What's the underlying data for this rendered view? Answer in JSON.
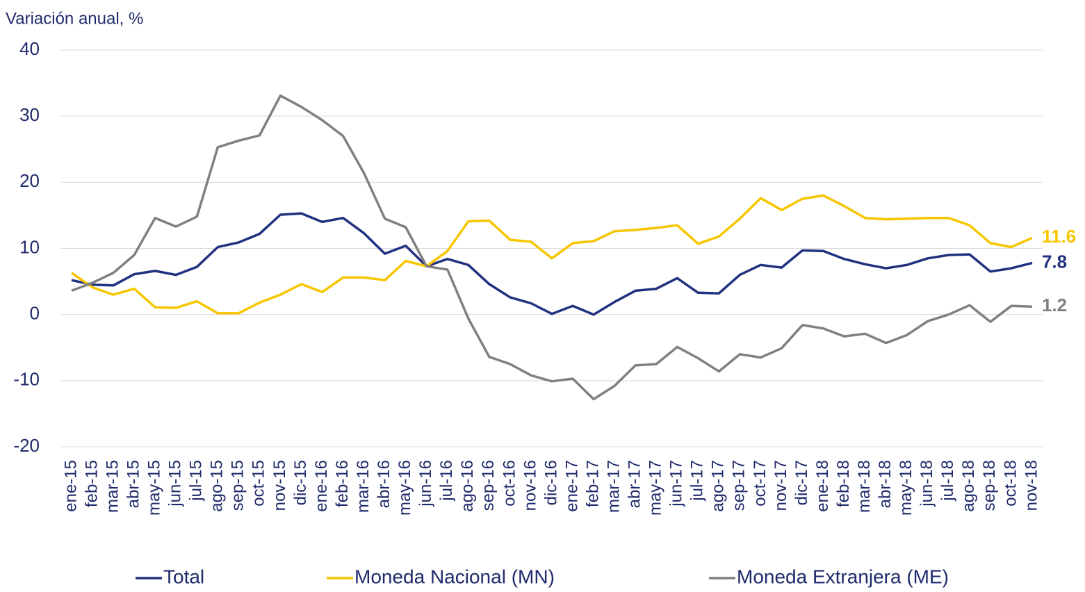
{
  "chart_data": {
    "type": "line",
    "y_axis_label": "Variación anual, %",
    "categories": [
      "ene-15",
      "feb-15",
      "mar-15",
      "abr-15",
      "may-15",
      "jun-15",
      "jul-15",
      "ago-15",
      "sep-15",
      "oct-15",
      "nov-15",
      "dic-15",
      "ene-16",
      "feb-16",
      "mar-16",
      "abr-16",
      "may-16",
      "jun-16",
      "jul-16",
      "ago-16",
      "sep-16",
      "oct-16",
      "nov-16",
      "dic-16",
      "ene-17",
      "feb-17",
      "mar-17",
      "abr-17",
      "may-17",
      "jun-17",
      "jul-17",
      "ago-17",
      "sep-17",
      "oct-17",
      "nov-17",
      "dic-17",
      "ene-18",
      "feb-18",
      "mar-18",
      "abr-18",
      "may-18",
      "jun-18",
      "jul-18",
      "ago-18",
      "sep-18",
      "oct-18",
      "nov-18"
    ],
    "series": [
      {
        "name": "Total",
        "color": "#22317f",
        "values": [
          5.2,
          4.5,
          4.4,
          6.1,
          6.6,
          6.0,
          7.2,
          10.2,
          10.9,
          12.2,
          15.1,
          15.3,
          14.0,
          14.6,
          12.3,
          9.2,
          10.4,
          7.3,
          8.4,
          7.5,
          4.6,
          2.6,
          1.7,
          0.1,
          1.3,
          0.0,
          1.9,
          3.6,
          3.9,
          5.5,
          3.3,
          3.2,
          6.0,
          7.5,
          7.1,
          9.7,
          9.6,
          8.4,
          7.6,
          7.0,
          7.5,
          8.5,
          9.0,
          9.1,
          6.5,
          7.0,
          7.8
        ]
      },
      {
        "name": "Moneda Nacional (MN)",
        "color": "#f7c600",
        "values": [
          6.3,
          4.1,
          3.0,
          3.9,
          1.1,
          1.0,
          2.0,
          0.2,
          0.2,
          1.8,
          3.0,
          4.6,
          3.4,
          5.6,
          5.6,
          5.2,
          8.1,
          7.3,
          9.6,
          14.1,
          14.2,
          11.3,
          11.0,
          8.5,
          10.8,
          11.1,
          12.6,
          12.8,
          13.1,
          13.5,
          10.7,
          11.8,
          14.5,
          17.6,
          15.8,
          17.5,
          18.0,
          16.4,
          14.6,
          14.4,
          14.5,
          14.6,
          14.6,
          13.5,
          10.8,
          10.2,
          11.6
        ]
      },
      {
        "name": "Moneda Extranjera (ME)",
        "color": "#808080",
        "values": [
          3.6,
          4.8,
          6.3,
          9.0,
          14.6,
          13.3,
          14.8,
          25.3,
          26.3,
          27.1,
          33.1,
          31.4,
          29.4,
          27.0,
          21.4,
          14.5,
          13.2,
          7.3,
          6.8,
          -0.6,
          -6.4,
          -7.5,
          -9.2,
          -10.1,
          -9.7,
          -12.8,
          -10.8,
          -7.7,
          -7.5,
          -4.9,
          -6.6,
          -8.6,
          -6.0,
          -6.5,
          -5.1,
          -1.6,
          -2.1,
          -3.3,
          -2.9,
          -4.3,
          -3.1,
          -1.0,
          0.0,
          1.4,
          -1.1,
          1.3,
          1.2
        ]
      }
    ],
    "ylim": [
      -20,
      40
    ],
    "yticks": [
      -20,
      -10,
      0,
      10,
      20,
      30,
      40
    ],
    "grid": true,
    "legend": "bottom"
  }
}
